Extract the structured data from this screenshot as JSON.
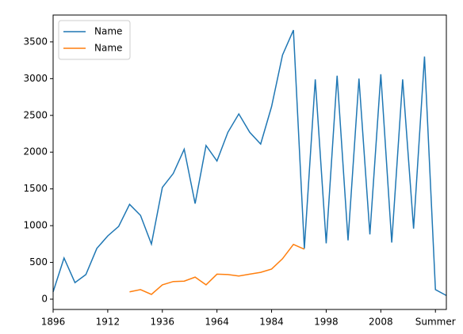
{
  "chart_data": {
    "type": "line",
    "categories": [
      "1896",
      null,
      null,
      null,
      null,
      "1912",
      null,
      null,
      null,
      null,
      "1936",
      null,
      null,
      null,
      null,
      "1964",
      null,
      null,
      null,
      null,
      "1984",
      null,
      null,
      null,
      null,
      "1998",
      null,
      null,
      null,
      null,
      "2008",
      null,
      null,
      null,
      null,
      "Summer",
      null
    ],
    "series": [
      {
        "name": "Name",
        "color": "#1f77b4",
        "values": [
          100,
          560,
          225,
          335,
          690,
          860,
          990,
          1290,
          1140,
          750,
          1520,
          1710,
          2040,
          1300,
          2090,
          1880,
          2270,
          2520,
          2270,
          2110,
          2620,
          3320,
          3660,
          690,
          2990,
          760,
          3040,
          800,
          3000,
          880,
          3060,
          770,
          2990,
          960,
          3300,
          130,
          50
        ]
      },
      {
        "name": "Name",
        "color": "#ff7f0e",
        "values": [
          null,
          null,
          null,
          null,
          null,
          null,
          null,
          100,
          130,
          65,
          195,
          240,
          245,
          300,
          195,
          340,
          335,
          315,
          340,
          365,
          410,
          550,
          745,
          680,
          null,
          null,
          null,
          null,
          null,
          null,
          null,
          null,
          null,
          null,
          null,
          null,
          null
        ]
      }
    ],
    "ylim": [
      -140,
      3865
    ],
    "yticks": [
      0,
      500,
      1000,
      1500,
      2000,
      2500,
      3000,
      3500
    ],
    "legend": "upper left"
  }
}
